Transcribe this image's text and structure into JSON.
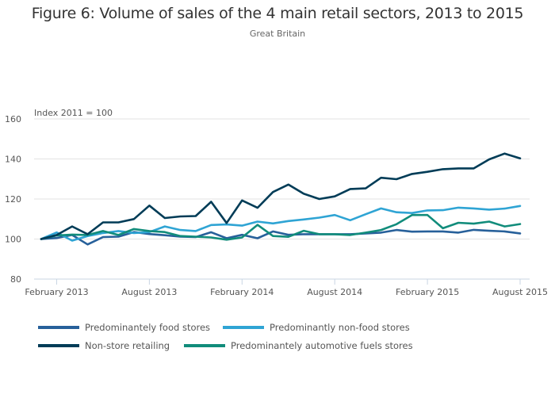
{
  "chart_data": {
    "type": "line",
    "title": "Figure 6: Volume of sales of the 4 main retail sectors, 2013 to 2015",
    "subtitle": "Great Britain",
    "ylabel": "Index 2011 = 100",
    "xlabel": "",
    "ylim": [
      80,
      160
    ],
    "yticks": [
      80,
      100,
      120,
      140,
      160
    ],
    "grid": true,
    "legend_position": "bottom",
    "x": [
      "Jan 2013",
      "Feb 2013",
      "Mar 2013",
      "Apr 2013",
      "May 2013",
      "Jun 2013",
      "Jul 2013",
      "Aug 2013",
      "Sep 2013",
      "Oct 2013",
      "Nov 2013",
      "Dec 2013",
      "Jan 2014",
      "Feb 2014",
      "Mar 2014",
      "Apr 2014",
      "May 2014",
      "Jun 2014",
      "Jul 2014",
      "Aug 2014",
      "Sep 2014",
      "Oct 2014",
      "Nov 2014",
      "Dec 2014",
      "Jan 2015",
      "Feb 2015",
      "Mar 2015",
      "Apr 2015",
      "May 2015",
      "Jun 2015",
      "Jul 2015",
      "Aug 2015"
    ],
    "xticks": [
      {
        "index": 1,
        "label": "February 2013"
      },
      {
        "index": 7,
        "label": "August 2013"
      },
      {
        "index": 13,
        "label": "February 2014"
      },
      {
        "index": 19,
        "label": "August 2014"
      },
      {
        "index": 25,
        "label": "February 2015"
      },
      {
        "index": 31,
        "label": "August 2015"
      }
    ],
    "series": [
      {
        "name": "Predominantely food stores",
        "color": "#27609a",
        "values": [
          100,
          100.5,
          102,
          97.3,
          101,
          101.2,
          103.5,
          102.5,
          101.9,
          101.2,
          101,
          103.4,
          100.4,
          102.1,
          100.4,
          103.8,
          102.1,
          102.4,
          102.4,
          102.4,
          102.4,
          102.8,
          103.2,
          104.5,
          103.7,
          103.8,
          103.8,
          103.2,
          104.6,
          104.1,
          103.8,
          102.8
        ]
      },
      {
        "name": "Predominantly non-food stores",
        "color": "#2fa4d4",
        "values": [
          100,
          103.3,
          99.2,
          101.5,
          103,
          104,
          103,
          103.5,
          106.3,
          104.5,
          104,
          107,
          107.3,
          106.7,
          108.7,
          107.8,
          109,
          109.8,
          110.7,
          112,
          109.4,
          112.4,
          115.3,
          113.4,
          113,
          114.3,
          114.4,
          115.7,
          115.3,
          114.7,
          115.2,
          116.5
        ]
      },
      {
        "name": "Non-store retailing",
        "color": "#003c57",
        "values": [
          100,
          102,
          106.3,
          102.4,
          108.3,
          108.3,
          110,
          116.7,
          110.5,
          111.3,
          111.5,
          118.6,
          108,
          119.3,
          115.6,
          123.5,
          127.2,
          122.6,
          120,
          121.3,
          125,
          125.3,
          130.6,
          129.9,
          132.5,
          133.6,
          134.9,
          135.3,
          135.3,
          139.8,
          142.7,
          140.3
        ]
      },
      {
        "name": "Predominantely automotive fuels stores",
        "color": "#118c7b",
        "values": [
          100,
          101.8,
          102.2,
          102,
          104,
          102,
          105,
          104,
          103.5,
          101.5,
          101.2,
          100.8,
          99.7,
          100.8,
          107.1,
          101.5,
          101.1,
          104.1,
          102.4,
          102.4,
          102,
          103.2,
          104.5,
          107.4,
          112,
          112,
          105.4,
          108.1,
          107.7,
          108.7,
          106.3,
          107.5
        ]
      }
    ]
  },
  "legend": {
    "items": [
      {
        "label": "Predominantely food stores",
        "color": "#27609a"
      },
      {
        "label": "Predominantly non-food stores",
        "color": "#2fa4d4"
      },
      {
        "label": "Non-store retailing",
        "color": "#003c57"
      },
      {
        "label": "Predominantely automotive fuels stores",
        "color": "#118c7b"
      }
    ]
  },
  "colors": {
    "grid": "#e3e3e3",
    "axis": "#c9d6e3",
    "text": "#555555"
  }
}
